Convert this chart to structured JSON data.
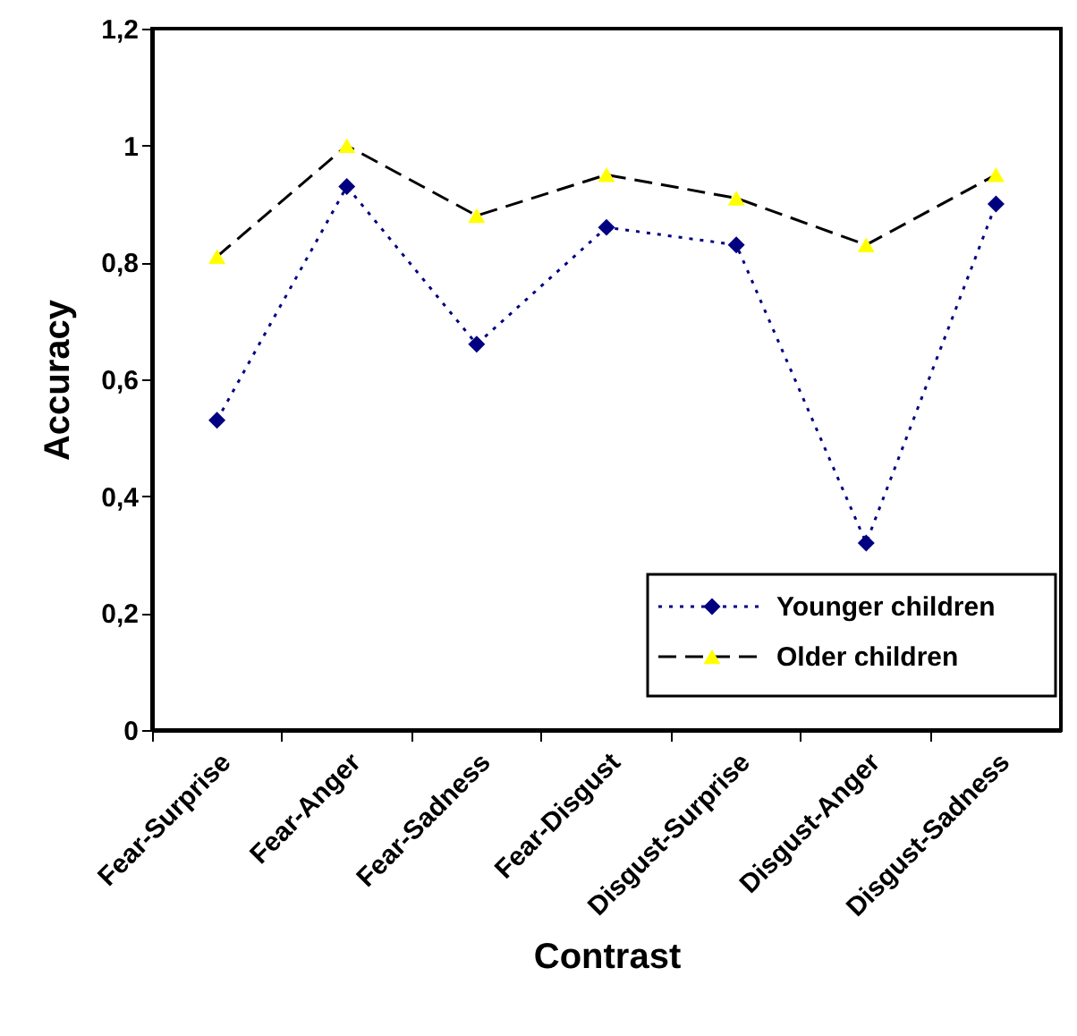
{
  "chart_data": {
    "type": "line",
    "xlabel": "Contrast",
    "ylabel": "Accuracy",
    "categories": [
      "Fear-Surprise",
      "Fear-Anger",
      "Fear-Sadness",
      "Fear-Disgust",
      "Disgust-Surprise",
      "Disgust-Anger",
      "Disgust-Sadness"
    ],
    "series": [
      {
        "name": "Younger children",
        "color": "#000080",
        "marker": "diamond",
        "line_style": "dotted",
        "values": [
          0.53,
          0.93,
          0.66,
          0.86,
          0.83,
          0.32,
          0.9
        ]
      },
      {
        "name": "Older children",
        "color": "#000000",
        "colors": [
          "#ffff00",
          "#ffff00",
          "#ffff00",
          "#ffff00",
          "#ffff00",
          "#ffff00",
          "#ffff00"
        ],
        "marker": "triangle",
        "line_style": "dashed",
        "values": [
          0.81,
          1.0,
          0.88,
          0.95,
          0.91,
          0.83,
          0.95
        ]
      }
    ],
    "ylim": [
      0,
      1.2
    ],
    "yticks": [
      0,
      {
        "value": 0.2,
        "label": "0,2"
      },
      {
        "value": 0.4,
        "label": "0,4"
      },
      {
        "value": 0.6,
        "label": "0,6"
      },
      {
        "value": 0.8,
        "label": "0,8"
      },
      1,
      {
        "value": 1.2,
        "label": "1,2"
      }
    ],
    "grid": false,
    "legend": "bottom right"
  }
}
